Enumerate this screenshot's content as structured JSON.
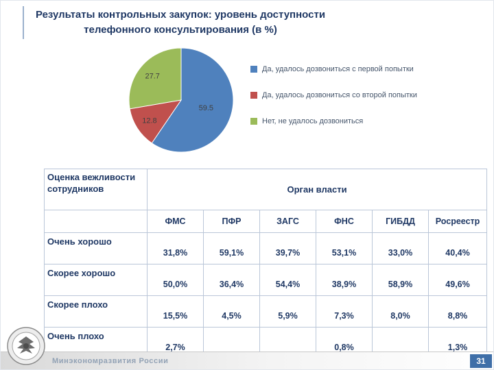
{
  "title": {
    "text": "Результаты контрольных закупок: уровень доступности телефонного консультирования (в %)"
  },
  "chart_data": {
    "type": "pie",
    "title": "",
    "legend_position": "right",
    "slices": [
      {
        "label": "Да, удалось дозвониться с первой попытки",
        "value": 59.5,
        "color": "#4f81bd"
      },
      {
        "label": "Да, удалось дозвониться со второй попытки",
        "value": 12.8,
        "color": "#c0504d"
      },
      {
        "label": "Нет, не удалось дозвониться",
        "value": 27.7,
        "color": "#9bbb59"
      }
    ]
  },
  "table": {
    "corner_header": "Оценка вежливости сотрудников",
    "group_header": "Орган власти",
    "columns": [
      "ФМС",
      "ПФР",
      "ЗАГС",
      "ФНС",
      "ГИБДД",
      "Росреестр"
    ],
    "rows": [
      {
        "label": "Очень хорошо",
        "values": [
          "31,8%",
          "59,1%",
          "39,7%",
          "53,1%",
          "33,0%",
          "40,4%"
        ]
      },
      {
        "label": "Скорее хорошо",
        "values": [
          "50,0%",
          "36,4%",
          "54,4%",
          "38,9%",
          "58,9%",
          "49,6%"
        ]
      },
      {
        "label": "Скорее плохо",
        "values": [
          "15,5%",
          "4,5%",
          "5,9%",
          "7,3%",
          "8,0%",
          "8,8%"
        ]
      },
      {
        "label": "Очень плохо",
        "values": [
          "2,7%",
          "",
          "",
          "0,8%",
          "",
          "1,3%"
        ]
      }
    ]
  },
  "footer": {
    "org": "Минэкономразвития России",
    "page": "31"
  }
}
